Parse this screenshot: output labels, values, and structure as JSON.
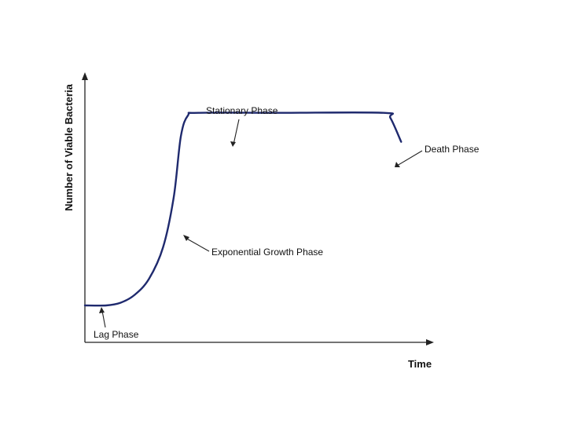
{
  "chart_data": {
    "type": "line",
    "title": "",
    "xlabel": "Time",
    "ylabel": "Number of Viable Bacteria",
    "xlim": [
      0,
      100
    ],
    "ylim": [
      0,
      100
    ],
    "grid": false,
    "legend": "none",
    "color": "#1f2a6e",
    "series": [
      {
        "values": [
          [
            0,
            14
          ],
          [
            6,
            14
          ],
          [
            10,
            15
          ],
          [
            14,
            18
          ],
          [
            18,
            24
          ],
          [
            22,
            36
          ],
          [
            25,
            55
          ],
          [
            27,
            78
          ],
          [
            29,
            86
          ],
          [
            32,
            87
          ],
          [
            55,
            87
          ],
          [
            84,
            87
          ],
          [
            86,
            85
          ],
          [
            89,
            76
          ]
        ]
      }
    ],
    "annotations": [
      {
        "text": "Stationary Phase",
        "x": 43,
        "y": 87
      },
      {
        "text": "Death Phase",
        "x": 89,
        "y": 76
      },
      {
        "text": "Exponential Growth Phase",
        "x": 29,
        "y": 45
      },
      {
        "text": "Lag Phase",
        "x": 6,
        "y": 14
      }
    ]
  }
}
